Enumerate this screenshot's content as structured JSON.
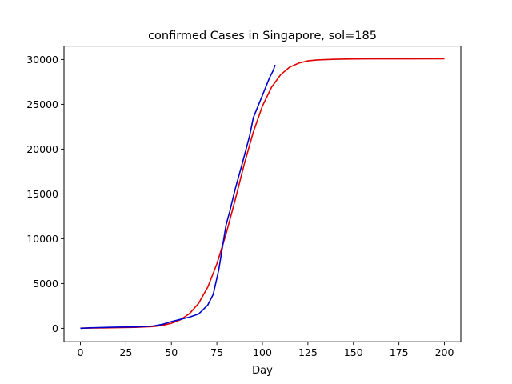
{
  "chart_data": {
    "type": "line",
    "title": "confirmed Cases in Singapore, sol=185",
    "xlabel": "Day",
    "ylabel": "",
    "xlim": [
      -9,
      209
    ],
    "ylim": [
      -1500,
      31500
    ],
    "xticks": [
      0,
      25,
      50,
      75,
      100,
      125,
      150,
      175,
      200
    ],
    "yticks": [
      0,
      5000,
      10000,
      15000,
      20000,
      25000,
      30000
    ],
    "grid": false,
    "legend": null,
    "series": [
      {
        "color": "#e00000",
        "x": [
          0,
          10,
          20,
          30,
          40,
          45,
          50,
          55,
          60,
          65,
          70,
          75,
          80,
          85,
          90,
          95,
          100,
          105,
          110,
          115,
          120,
          125,
          130,
          140,
          150,
          160,
          175,
          200
        ],
        "y": [
          20,
          40,
          70,
          110,
          200,
          320,
          560,
          960,
          1650,
          2800,
          4600,
          7200,
          10500,
          14300,
          18300,
          21900,
          24800,
          26900,
          28300,
          29150,
          29600,
          29850,
          29950,
          30030,
          30060,
          30070,
          30075,
          30080
        ]
      },
      {
        "color": "#0000cc",
        "x": [
          0,
          5,
          10,
          15,
          20,
          25,
          30,
          35,
          40,
          45,
          50,
          55,
          60,
          65,
          70,
          73,
          76,
          78,
          80,
          82,
          85,
          88,
          90,
          93,
          95,
          98,
          100,
          102,
          104,
          106,
          107
        ],
        "y": [
          0,
          50,
          80,
          110,
          130,
          140,
          150,
          200,
          260,
          440,
          750,
          1000,
          1250,
          1600,
          2600,
          3800,
          6500,
          9000,
          11500,
          13000,
          15500,
          17700,
          19200,
          21500,
          23500,
          25000,
          26000,
          27000,
          28000,
          28800,
          29400
        ]
      }
    ]
  }
}
